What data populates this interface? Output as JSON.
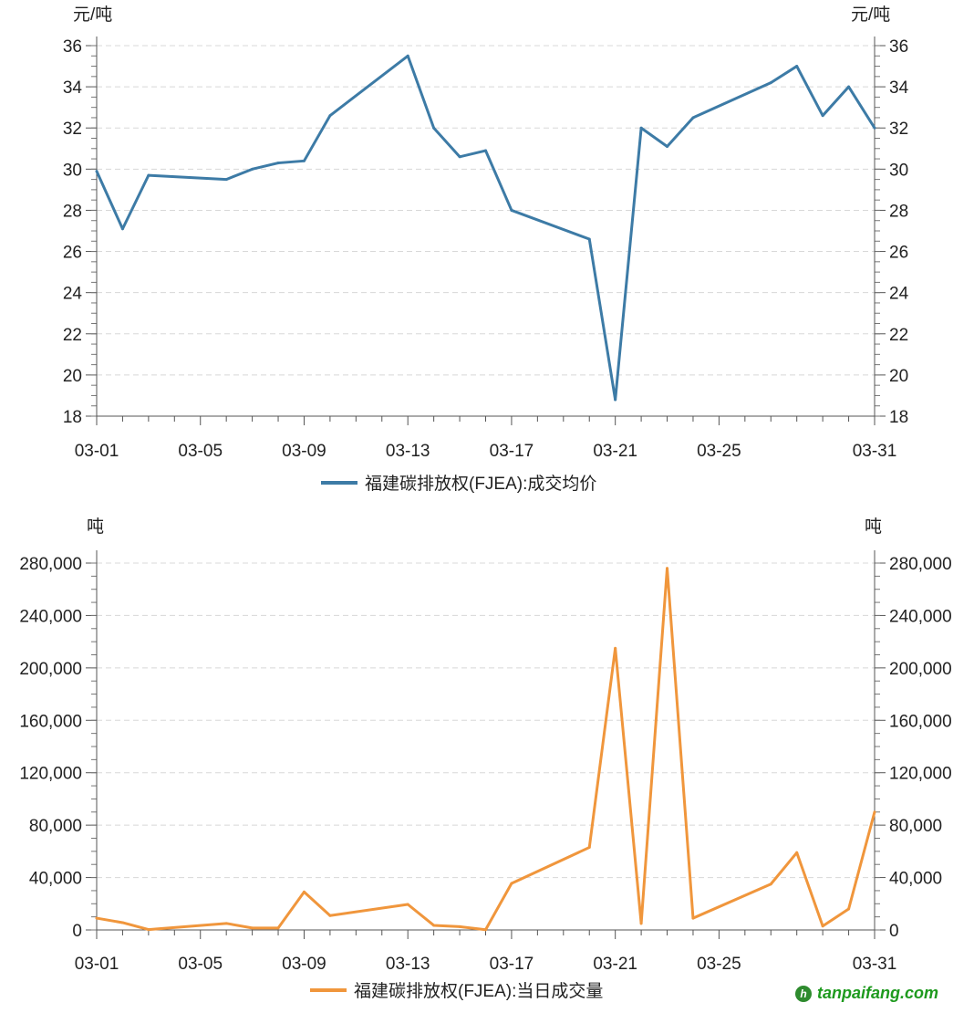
{
  "chart_data": [
    {
      "type": "line",
      "unit_label": "元/吨",
      "legend": "福建碳排放权(FJEA):成交均价",
      "color": "#3d7ba6",
      "ylim": [
        18,
        36
      ],
      "yticks": [
        18,
        20,
        22,
        24,
        26,
        28,
        30,
        32,
        34,
        36
      ],
      "ytick_labels": [
        "18",
        "20",
        "22",
        "24",
        "26",
        "28",
        "30",
        "32",
        "34",
        "36"
      ],
      "minor_step": 0.5,
      "xticks": [
        "03-01",
        "03-05",
        "03-09",
        "03-13",
        "03-17",
        "03-21",
        "03-25",
        "03-31"
      ],
      "x": [
        "03-01",
        "03-02",
        "03-03",
        "03-06",
        "03-07",
        "03-08",
        "03-09",
        "03-10",
        "03-13",
        "03-14",
        "03-15",
        "03-16",
        "03-17",
        "03-20",
        "03-21",
        "03-22",
        "03-23",
        "03-24",
        "03-27",
        "03-28",
        "03-29",
        "03-30",
        "03-31"
      ],
      "values": [
        29.9,
        27.1,
        29.7,
        29.5,
        30.0,
        30.3,
        30.4,
        32.6,
        35.5,
        32.0,
        30.6,
        30.9,
        28.0,
        26.6,
        18.8,
        32.0,
        31.1,
        32.5,
        34.2,
        35.0,
        32.6,
        34.0,
        32.0
      ],
      "legend_placement": "bottom",
      "grid": true
    },
    {
      "type": "line",
      "unit_label": "吨",
      "legend": "福建碳排放权(FJEA):当日成交量",
      "color": "#f0963c",
      "ylim": [
        0,
        280000
      ],
      "yticks": [
        0,
        40000,
        80000,
        120000,
        160000,
        200000,
        240000,
        280000
      ],
      "ytick_labels": [
        "0",
        "40,000",
        "80,000",
        "120,000",
        "160,000",
        "200,000",
        "240,000",
        "280,000"
      ],
      "minor_step": 10000,
      "xticks": [
        "03-01",
        "03-05",
        "03-09",
        "03-13",
        "03-17",
        "03-21",
        "03-25",
        "03-31"
      ],
      "x": [
        "03-01",
        "03-02",
        "03-03",
        "03-06",
        "03-07",
        "03-08",
        "03-09",
        "03-10",
        "03-13",
        "03-14",
        "03-15",
        "03-16",
        "03-17",
        "03-20",
        "03-21",
        "03-22",
        "03-23",
        "03-24",
        "03-27",
        "03-28",
        "03-29",
        "03-30",
        "03-31"
      ],
      "values": [
        9000,
        5600,
        300,
        5000,
        1500,
        1500,
        29000,
        11000,
        19500,
        3500,
        2500,
        200,
        35500,
        63000,
        215000,
        5000,
        276000,
        9000,
        35000,
        59000,
        3000,
        16000,
        90000
      ],
      "legend_placement": "bottom",
      "grid": true
    }
  ],
  "watermark": {
    "text": "tanpaifang.com"
  }
}
